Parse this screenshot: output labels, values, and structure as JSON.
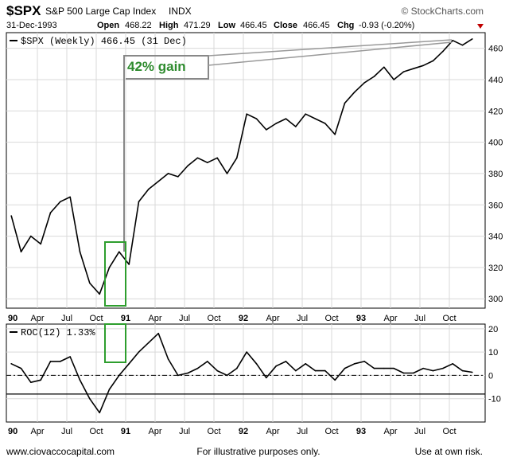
{
  "header": {
    "symbol": "$SPX",
    "name": "S&P 500 Large Cap Index",
    "exchange": "INDX",
    "date": "31-Dec-1993",
    "open_label": "Open",
    "open": "468.22",
    "high_label": "High",
    "high": "471.29",
    "low_label": "Low",
    "low": "466.45",
    "close_label": "Close",
    "close": "466.45",
    "chg_label": "Chg",
    "chg": "-0.93 (-0.20%)",
    "source": "© StockCharts.com"
  },
  "annotation": {
    "gain_text": "42% gain"
  },
  "footer": {
    "left": "www.ciovaccocapital.com",
    "center": "For illustrative purposes only.",
    "right": "Use at own risk."
  },
  "colors": {
    "price_line": "#000000",
    "highlight_box": "#2e9e2e",
    "gain_text": "#2e8b2e",
    "callout": "#999999",
    "grid": "#d9d9d9",
    "chg_arrow": "#c00000"
  },
  "chart_data": [
    {
      "type": "line",
      "legend": "$SPX (Weekly) 466.45 (31 Dec)",
      "x_tick_labels": [
        "90",
        "Apr",
        "Jul",
        "Oct",
        "91",
        "Apr",
        "Jul",
        "Oct",
        "92",
        "Apr",
        "Jul",
        "Oct",
        "93",
        "Apr",
        "Jul",
        "Oct"
      ],
      "y_ticks": [
        300,
        320,
        340,
        360,
        380,
        400,
        420,
        440,
        460
      ],
      "ylim": [
        294,
        470
      ],
      "grid": true,
      "series": [
        {
          "name": "$SPX",
          "x": [
            "1990-01",
            "1990-02",
            "1990-03",
            "1990-04",
            "1990-05",
            "1990-06",
            "1990-07",
            "1990-08",
            "1990-09",
            "1990-10",
            "1990-11",
            "1990-12",
            "1991-01",
            "1991-02",
            "1991-03",
            "1991-04",
            "1991-05",
            "1991-06",
            "1991-07",
            "1991-08",
            "1991-09",
            "1991-10",
            "1991-11",
            "1991-12",
            "1992-01",
            "1992-02",
            "1992-03",
            "1992-04",
            "1992-05",
            "1992-06",
            "1992-07",
            "1992-08",
            "1992-09",
            "1992-10",
            "1992-11",
            "1992-12",
            "1993-01",
            "1993-02",
            "1993-03",
            "1993-04",
            "1993-05",
            "1993-06",
            "1993-07",
            "1993-08",
            "1993-09",
            "1993-10",
            "1993-11",
            "1993-12"
          ],
          "values": [
            353,
            330,
            340,
            335,
            355,
            362,
            365,
            330,
            310,
            303,
            320,
            330,
            322,
            362,
            370,
            375,
            380,
            378,
            385,
            390,
            387,
            390,
            380,
            390,
            418,
            415,
            408,
            412,
            415,
            410,
            418,
            415,
            412,
            405,
            425,
            432,
            438,
            442,
            448,
            440,
            445,
            447,
            449,
            452,
            458,
            465,
            462,
            466
          ]
        }
      ]
    },
    {
      "type": "line",
      "legend": "ROC(12) 1.33%",
      "x_tick_labels": [
        "90",
        "Apr",
        "Jul",
        "Oct",
        "91",
        "Apr",
        "Jul",
        "Oct",
        "92",
        "Apr",
        "Jul",
        "Oct",
        "93",
        "Apr",
        "Jul",
        "Oct"
      ],
      "y_ticks": [
        -10,
        0,
        10,
        20
      ],
      "ylim": [
        -20,
        22
      ],
      "reference_lines": [
        0,
        -8
      ],
      "grid": true,
      "series": [
        {
          "name": "ROC(12)",
          "x": [
            "1990-01",
            "1990-02",
            "1990-03",
            "1990-04",
            "1990-05",
            "1990-06",
            "1990-07",
            "1990-08",
            "1990-09",
            "1990-10",
            "1990-11",
            "1990-12",
            "1991-01",
            "1991-02",
            "1991-03",
            "1991-04",
            "1991-05",
            "1991-06",
            "1991-07",
            "1991-08",
            "1991-09",
            "1991-10",
            "1991-11",
            "1991-12",
            "1992-01",
            "1992-02",
            "1992-03",
            "1992-04",
            "1992-05",
            "1992-06",
            "1992-07",
            "1992-08",
            "1992-09",
            "1992-10",
            "1992-11",
            "1992-12",
            "1993-01",
            "1993-02",
            "1993-03",
            "1993-04",
            "1993-05",
            "1993-06",
            "1993-07",
            "1993-08",
            "1993-09",
            "1993-10",
            "1993-11",
            "1993-12"
          ],
          "values": [
            5,
            3,
            -3,
            -2,
            6,
            6,
            8,
            -2,
            -10,
            -16,
            -6,
            0,
            5,
            10,
            14,
            18,
            7,
            0,
            1,
            3,
            6,
            2,
            0,
            3,
            10,
            5,
            -1,
            4,
            6,
            2,
            5,
            2,
            2,
            -2,
            3,
            5,
            6,
            3,
            3,
            3,
            1,
            1,
            3,
            2,
            3,
            5,
            2,
            1.33
          ]
        }
      ]
    }
  ]
}
